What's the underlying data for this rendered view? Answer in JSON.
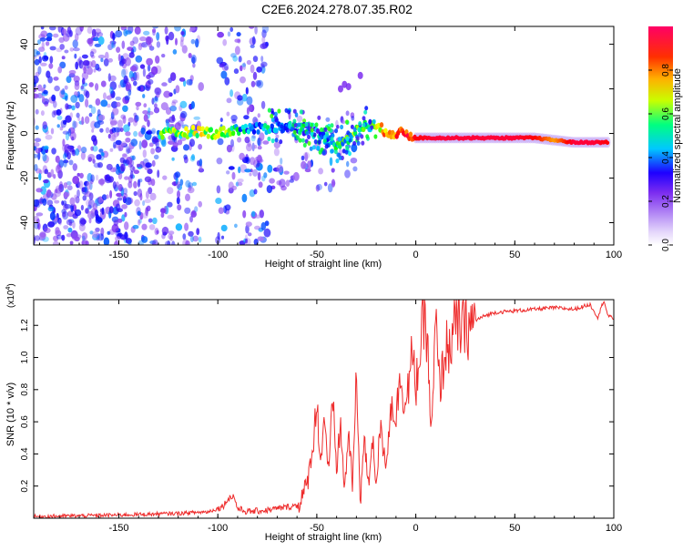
{
  "figure": {
    "title": "C2E6.2024.278.07.35.R02"
  },
  "colors": {
    "snr_line": "#ee2b2b",
    "axis": "#000000",
    "background": "#ffffff",
    "spectrogram_scatter": "#7b2cf0"
  },
  "chart_data": [
    {
      "type": "heatmap",
      "title": "",
      "xlabel": "Height of straight line (km)",
      "ylabel": "Frequency (Hz)",
      "xlim": [
        -193,
        100
      ],
      "ylim": [
        -50,
        48
      ],
      "x_ticks": [
        -150,
        -100,
        -50,
        0,
        50,
        100
      ],
      "y_ticks": [
        -40,
        -20,
        0,
        20,
        40
      ],
      "colorbar": {
        "label": "Normalized spectral amplitude",
        "range": [
          0,
          1
        ],
        "ticks": [
          0.0,
          0.2,
          0.4,
          0.6,
          0.8
        ],
        "colormap": [
          "#ffffff",
          "#b58cf5",
          "#7b2cf0",
          "#0000ff",
          "#00e5ff",
          "#00ff00",
          "#ffff00",
          "#ff8000",
          "#ff0000",
          "#ff0066"
        ]
      },
      "ridge": {
        "description_free": true,
        "x": [
          -130,
          -120,
          -110,
          -100,
          -90,
          -80,
          -70,
          -60,
          -50,
          -40,
          -35,
          -30,
          -25,
          -20,
          -15,
          -10,
          -5,
          0,
          10,
          20,
          30,
          40,
          50,
          60,
          70,
          80,
          90,
          97
        ],
        "y": [
          0,
          0,
          1,
          0,
          2,
          2,
          3,
          3,
          0,
          -5,
          -3,
          1,
          4,
          3,
          1,
          0,
          0,
          -2,
          -2,
          -2,
          -2,
          -2,
          -2,
          -2,
          -3,
          -4,
          -4,
          -4
        ],
        "amplitude": [
          0.5,
          0.55,
          0.6,
          0.6,
          0.45,
          0.4,
          0.4,
          0.4,
          0.35,
          0.45,
          0.5,
          0.55,
          0.55,
          0.6,
          0.75,
          0.8,
          0.85,
          0.9,
          0.95,
          0.95,
          0.95,
          0.95,
          0.95,
          0.9,
          0.75,
          0.95,
          0.95,
          0.9
        ]
      }
    },
    {
      "type": "line",
      "title": "",
      "xlabel": "Height of straight line (km)",
      "ylabel": "SNR (10 * v/v)",
      "y_multiplier": "(x10",
      "y_multiplier_exp": "4",
      "y_multiplier_close": ")",
      "xlim": [
        -193,
        100
      ],
      "ylim": [
        0,
        1.36
      ],
      "x_ticks": [
        -150,
        -100,
        -50,
        0,
        50,
        100
      ],
      "y_ticks": [
        0.2,
        0.4,
        0.6,
        0.8,
        1.0,
        1.2
      ],
      "series": [
        {
          "x": [
            -193,
            -150,
            -120,
            -105,
            -100,
            -97,
            -95,
            -92,
            -90,
            -85,
            -75,
            -65,
            -60,
            -58,
            -55,
            -52,
            -50,
            -48,
            -46,
            -44,
            -42,
            -40,
            -38,
            -36,
            -34,
            -32,
            -30,
            -28,
            -26,
            -24,
            -22,
            -20,
            -18,
            -15,
            -12,
            -10,
            -8,
            -5,
            -2,
            0,
            3,
            5,
            8,
            10,
            12,
            15,
            18,
            20,
            25,
            30,
            35,
            40,
            50,
            60,
            70,
            80,
            88,
            92,
            95,
            97,
            100
          ],
          "y": [
            0.01,
            0.02,
            0.03,
            0.04,
            0.06,
            0.08,
            0.12,
            0.14,
            0.06,
            0.04,
            0.05,
            0.07,
            0.08,
            0.12,
            0.2,
            0.45,
            0.72,
            0.35,
            0.65,
            0.25,
            0.74,
            0.3,
            0.6,
            0.15,
            0.55,
            0.2,
            0.86,
            0.12,
            0.5,
            0.18,
            0.52,
            0.22,
            0.55,
            0.35,
            0.75,
            0.6,
            0.9,
            0.7,
            1.0,
            0.82,
            1.12,
            1.3,
            0.5,
            1.22,
            0.8,
            1.05,
            1.1,
            1.2,
            1.18,
            1.23,
            1.26,
            1.28,
            1.29,
            1.3,
            1.31,
            1.3,
            1.33,
            1.25,
            1.36,
            1.26,
            1.24
          ]
        }
      ]
    }
  ]
}
